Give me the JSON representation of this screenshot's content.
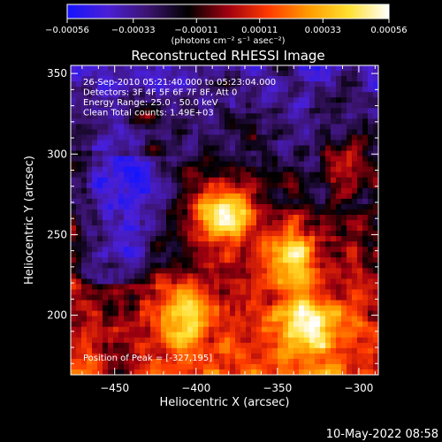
{
  "chart_data": {
    "type": "heatmap",
    "title": "Reconstructed RHESSI Image",
    "xlabel": "Heliocentric X (arcsec)",
    "ylabel": "Heliocentric Y (arcsec)",
    "xlim": [
      -477,
      -288
    ],
    "ylim": [
      163,
      355
    ],
    "xticks": [
      -450,
      -400,
      -350,
      -300
    ],
    "xtick_labels": [
      "−450",
      "−400",
      "−350",
      "−300"
    ],
    "yticks": [
      200,
      250,
      300,
      350
    ],
    "ytick_labels": [
      "200",
      "250",
      "300",
      "350"
    ],
    "colorbar": {
      "colormap": "blue-purple-red-yellow-white",
      "range": [
        -0.00056,
        0.00056
      ],
      "ticks": [
        -0.00056,
        -0.00033,
        -0.00011,
        0.00011,
        0.00033,
        0.00056
      ],
      "tick_labels": [
        "−0.00056",
        "−0.00033",
        "−0.00011",
        "0.00011",
        "0.00033",
        "0.00056"
      ],
      "unit": "(photons cm⁻² s⁻¹ asec⁻²)",
      "colors": [
        "#1414ff",
        "#4a1fd6",
        "#3c1470",
        "#000000",
        "#a00010",
        "#ff3a00",
        "#ff9a00",
        "#ffe030",
        "#ffffff"
      ]
    },
    "annotations": [
      "26-Sep-2010 05:21:40.000 to 05:23:04.000",
      "Detectors: 3F 4F 5F 6F 7F 8F, Att 0",
      "Energy Range: 25.0 - 50.0 keV",
      "Clean     Total counts: 1.49E+03"
    ],
    "peak_label": "Position of Peak = [-327,195]",
    "peak": [
      -327,
      195
    ],
    "grid": false
  },
  "footer": {
    "timestamp": "10-May-2022 08:58"
  }
}
